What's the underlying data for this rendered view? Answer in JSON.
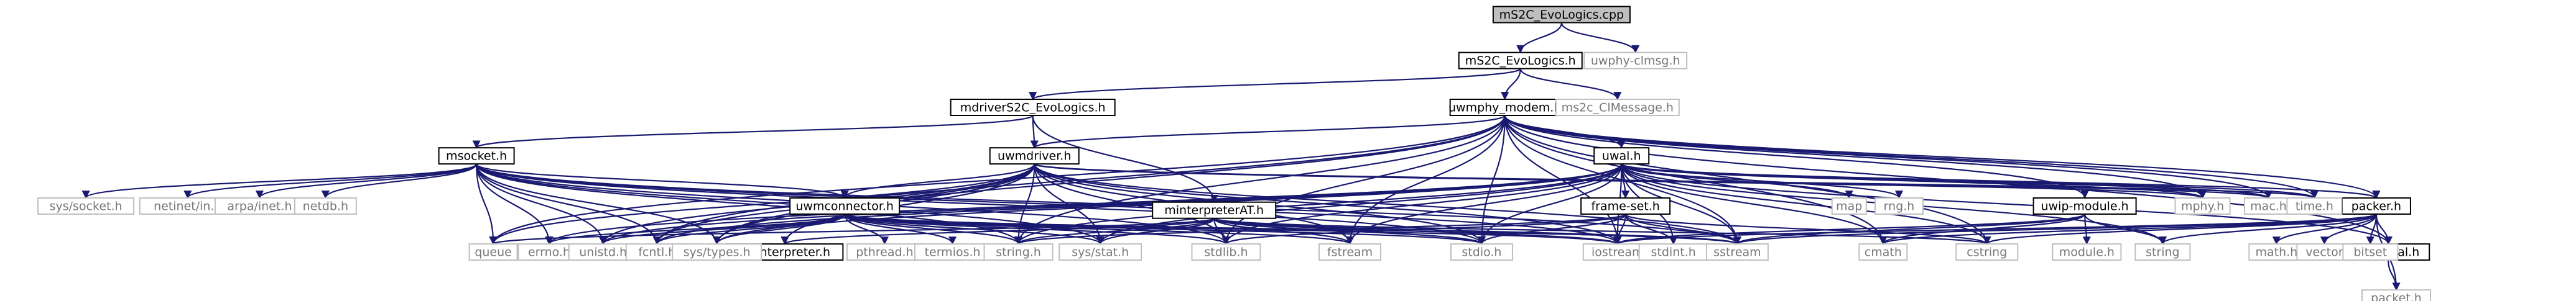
{
  "colors": {
    "edge": "#191970",
    "root_fill": "#bfbfbf",
    "root_border": "#000000",
    "documented_fill": "#ffffff",
    "documented_border": "#000000",
    "external_fill": "#ffffff",
    "external_border": "#bfbfbf",
    "documented_text": "#000000",
    "external_text": "#777777"
  },
  "nodes": [
    {
      "id": "root",
      "label": "mS2C_EvoLogics.cpp",
      "kind": "root"
    },
    {
      "id": "ms2c_h",
      "label": "mS2C_EvoLogics.h",
      "kind": "documented"
    },
    {
      "id": "uephy_clmsg",
      "label": "uwphy-clmsg.h",
      "kind": "external"
    },
    {
      "id": "mdriver_h",
      "label": "mdriverS2C_EvoLogics.h",
      "kind": "documented"
    },
    {
      "id": "uwmphy_h",
      "label": "uwmphy_modem.h",
      "kind": "documented"
    },
    {
      "id": "ms2c_clmsg",
      "label": "ms2c_ClMessage.h",
      "kind": "external"
    },
    {
      "id": "msocket_h",
      "label": "msocket.h",
      "kind": "documented"
    },
    {
      "id": "uwmdriver_h",
      "label": "uwmdriver.h",
      "kind": "documented"
    },
    {
      "id": "uwal_h",
      "label": "uwal.h",
      "kind": "documented"
    },
    {
      "id": "minterp_h",
      "label": "minterpreterAT.h",
      "kind": "documented"
    },
    {
      "id": "uwmconn_h",
      "label": "uwmconnector.h",
      "kind": "documented"
    },
    {
      "id": "frameset_h",
      "label": "frame-set.h",
      "kind": "documented"
    },
    {
      "id": "uwip_h",
      "label": "uwip-module.h",
      "kind": "documented"
    },
    {
      "id": "packer_h",
      "label": "packer.h",
      "kind": "documented"
    },
    {
      "id": "hdruwal_h",
      "label": "hdr-uwal.h",
      "kind": "documented"
    },
    {
      "id": "uwinterp_h",
      "label": "uwinterpreter.h",
      "kind": "documented"
    },
    {
      "id": "syssocket",
      "label": "sys/socket.h",
      "kind": "external"
    },
    {
      "id": "netinet",
      "label": "netinet/in.h",
      "kind": "external"
    },
    {
      "id": "arpainet",
      "label": "arpa/inet.h",
      "kind": "external"
    },
    {
      "id": "netdb",
      "label": "netdb.h",
      "kind": "external"
    },
    {
      "id": "map",
      "label": "map",
      "kind": "external"
    },
    {
      "id": "rng",
      "label": "rng.h",
      "kind": "external"
    },
    {
      "id": "mphy",
      "label": "mphy.h",
      "kind": "external"
    },
    {
      "id": "mac",
      "label": "mac.h",
      "kind": "external"
    },
    {
      "id": "time",
      "label": "time.h",
      "kind": "external"
    },
    {
      "id": "queue",
      "label": "queue",
      "kind": "external"
    },
    {
      "id": "errno",
      "label": "errno.h",
      "kind": "external"
    },
    {
      "id": "unistd",
      "label": "unistd.h",
      "kind": "external"
    },
    {
      "id": "fcntl",
      "label": "fcntl.h",
      "kind": "external"
    },
    {
      "id": "systypes",
      "label": "sys/types.h",
      "kind": "external"
    },
    {
      "id": "pthread",
      "label": "pthread.h",
      "kind": "external"
    },
    {
      "id": "termios",
      "label": "termios.h",
      "kind": "external"
    },
    {
      "id": "string_h",
      "label": "string.h",
      "kind": "external"
    },
    {
      "id": "sysstat",
      "label": "sys/stat.h",
      "kind": "external"
    },
    {
      "id": "stdlib",
      "label": "stdlib.h",
      "kind": "external"
    },
    {
      "id": "fstream",
      "label": "fstream",
      "kind": "external"
    },
    {
      "id": "stdio",
      "label": "stdio.h",
      "kind": "external"
    },
    {
      "id": "iostream",
      "label": "iostream",
      "kind": "external"
    },
    {
      "id": "stdint",
      "label": "stdint.h",
      "kind": "external"
    },
    {
      "id": "sstream",
      "label": "sstream",
      "kind": "external"
    },
    {
      "id": "cmath",
      "label": "cmath",
      "kind": "external"
    },
    {
      "id": "cstring",
      "label": "cstring",
      "kind": "external"
    },
    {
      "id": "module_h",
      "label": "module.h",
      "kind": "external"
    },
    {
      "id": "string",
      "label": "string",
      "kind": "external"
    },
    {
      "id": "math_h",
      "label": "math.h",
      "kind": "external"
    },
    {
      "id": "vector",
      "label": "vector",
      "kind": "external"
    },
    {
      "id": "bitset",
      "label": "bitset",
      "kind": "external"
    },
    {
      "id": "packet_h",
      "label": "packet.h",
      "kind": "external"
    }
  ],
  "edges": [
    [
      "root",
      "ms2c_h"
    ],
    [
      "root",
      "uephy_clmsg"
    ],
    [
      "ms2c_h",
      "mdriver_h"
    ],
    [
      "ms2c_h",
      "uwmphy_h"
    ],
    [
      "ms2c_h",
      "ms2c_clmsg"
    ],
    [
      "mdriver_h",
      "uwmdriver_h"
    ],
    [
      "mdriver_h",
      "msocket_h"
    ],
    [
      "mdriver_h",
      "minterp_h"
    ],
    [
      "uwmphy_h",
      "uwmdriver_h"
    ],
    [
      "uwmphy_h",
      "uwal_h"
    ],
    [
      "uwmphy_h",
      "uwip_h"
    ],
    [
      "uwmphy_h",
      "mphy"
    ],
    [
      "uwmphy_h",
      "mac"
    ],
    [
      "uwmphy_h",
      "time"
    ],
    [
      "uwmphy_h",
      "hdruwal_h"
    ],
    [
      "uwmphy_h",
      "packer_h"
    ],
    [
      "uwmphy_h",
      "queue"
    ],
    [
      "uwmphy_h",
      "iostream"
    ],
    [
      "uwmphy_h",
      "fstream"
    ],
    [
      "uwmphy_h",
      "stdio"
    ],
    [
      "uwmphy_h",
      "stdlib"
    ],
    [
      "uwmphy_h",
      "string_h"
    ],
    [
      "uwmphy_h",
      "cstring"
    ],
    [
      "uwmphy_h",
      "fcntl"
    ],
    [
      "uwmphy_h",
      "systypes"
    ],
    [
      "uwmphy_h",
      "sstream"
    ],
    [
      "uwmphy_h",
      "cmath"
    ],
    [
      "msocket_h",
      "uwmconn_h"
    ],
    [
      "msocket_h",
      "syssocket"
    ],
    [
      "msocket_h",
      "netinet"
    ],
    [
      "msocket_h",
      "arpainet"
    ],
    [
      "msocket_h",
      "netdb"
    ],
    [
      "msocket_h",
      "queue"
    ],
    [
      "msocket_h",
      "errno"
    ],
    [
      "msocket_h",
      "unistd"
    ],
    [
      "msocket_h",
      "fcntl"
    ],
    [
      "msocket_h",
      "systypes"
    ],
    [
      "msocket_h",
      "string_h"
    ],
    [
      "msocket_h",
      "sysstat"
    ],
    [
      "msocket_h",
      "stdlib"
    ],
    [
      "msocket_h",
      "stdio"
    ],
    [
      "msocket_h",
      "iostream"
    ],
    [
      "msocket_h",
      "sstream"
    ],
    [
      "uwmdriver_h",
      "uwmconn_h"
    ],
    [
      "uwmdriver_h",
      "uwinterp_h"
    ],
    [
      "uwmdriver_h",
      "mphy"
    ],
    [
      "uwmdriver_h",
      "queue"
    ],
    [
      "uwmdriver_h",
      "unistd"
    ],
    [
      "uwmdriver_h",
      "fcntl"
    ],
    [
      "uwmdriver_h",
      "systypes"
    ],
    [
      "uwmdriver_h",
      "string_h"
    ],
    [
      "uwmdriver_h",
      "sysstat"
    ],
    [
      "uwmdriver_h",
      "stdlib"
    ],
    [
      "uwmdriver_h",
      "fstream"
    ],
    [
      "uwmdriver_h",
      "stdio"
    ],
    [
      "uwmdriver_h",
      "iostream"
    ],
    [
      "uwmdriver_h",
      "sstream"
    ],
    [
      "uwmdriver_h",
      "mac"
    ],
    [
      "uwmdriver_h",
      "time"
    ],
    [
      "uwal_h",
      "frameset_h"
    ],
    [
      "uwal_h",
      "packer_h"
    ],
    [
      "uwal_h",
      "hdruwal_h"
    ],
    [
      "uwal_h",
      "map"
    ],
    [
      "uwal_h",
      "rng"
    ],
    [
      "uwal_h",
      "mphy"
    ],
    [
      "uwal_h",
      "mac"
    ],
    [
      "uwal_h",
      "time"
    ],
    [
      "uwal_h",
      "errno"
    ],
    [
      "uwal_h",
      "unistd"
    ],
    [
      "uwal_h",
      "fcntl"
    ],
    [
      "uwal_h",
      "systypes"
    ],
    [
      "uwal_h",
      "string_h"
    ],
    [
      "uwal_h",
      "sysstat"
    ],
    [
      "uwal_h",
      "stdlib"
    ],
    [
      "uwal_h",
      "fstream"
    ],
    [
      "uwal_h",
      "stdio"
    ],
    [
      "uwal_h",
      "iostream"
    ],
    [
      "uwal_h",
      "stdint"
    ],
    [
      "uwal_h",
      "sstream"
    ],
    [
      "uwal_h",
      "cmath"
    ],
    [
      "uwal_h",
      "cstring"
    ],
    [
      "uwal_h",
      "string"
    ],
    [
      "minterp_h",
      "uwinterp_h"
    ],
    [
      "minterp_h",
      "queue"
    ],
    [
      "minterp_h",
      "string_h"
    ],
    [
      "minterp_h",
      "sysstat"
    ],
    [
      "minterp_h",
      "stdlib"
    ],
    [
      "minterp_h",
      "fstream"
    ],
    [
      "minterp_h",
      "stdio"
    ],
    [
      "minterp_h",
      "iostream"
    ],
    [
      "minterp_h",
      "sstream"
    ],
    [
      "minterp_h",
      "cstring"
    ],
    [
      "uwmconn_h",
      "errno"
    ],
    [
      "uwmconn_h",
      "unistd"
    ],
    [
      "uwmconn_h",
      "fcntl"
    ],
    [
      "uwmconn_h",
      "systypes"
    ],
    [
      "uwmconn_h",
      "pthread"
    ],
    [
      "uwmconn_h",
      "termios"
    ],
    [
      "uwmconn_h",
      "string_h"
    ],
    [
      "uwmconn_h",
      "sysstat"
    ],
    [
      "uwmconn_h",
      "stdlib"
    ],
    [
      "uwmconn_h",
      "fstream"
    ],
    [
      "uwmconn_h",
      "stdio"
    ],
    [
      "uwmconn_h",
      "iostream"
    ],
    [
      "uwmconn_h",
      "sstream"
    ],
    [
      "frameset_h",
      "string_h"
    ],
    [
      "frameset_h",
      "stdlib"
    ],
    [
      "frameset_h",
      "stdio"
    ],
    [
      "frameset_h",
      "iostream"
    ],
    [
      "frameset_h",
      "stdint"
    ],
    [
      "frameset_h",
      "sstream"
    ],
    [
      "frameset_h",
      "cstring"
    ],
    [
      "uwip_h",
      "module_h"
    ],
    [
      "uwip_h",
      "string"
    ],
    [
      "uwip_h",
      "iostream"
    ],
    [
      "uwip_h",
      "sstream"
    ],
    [
      "uwip_h",
      "cmath"
    ],
    [
      "packer_h",
      "hdruwal_h"
    ],
    [
      "packer_h",
      "packet_h"
    ],
    [
      "packer_h",
      "math_h"
    ],
    [
      "packer_h",
      "vector"
    ],
    [
      "packer_h",
      "bitset"
    ],
    [
      "packer_h",
      "string"
    ],
    [
      "packer_h",
      "sstream"
    ],
    [
      "packer_h",
      "cmath"
    ],
    [
      "packer_h",
      "cstring"
    ],
    [
      "packer_h",
      "iostream"
    ],
    [
      "hdruwal_h",
      "packet_h"
    ]
  ]
}
